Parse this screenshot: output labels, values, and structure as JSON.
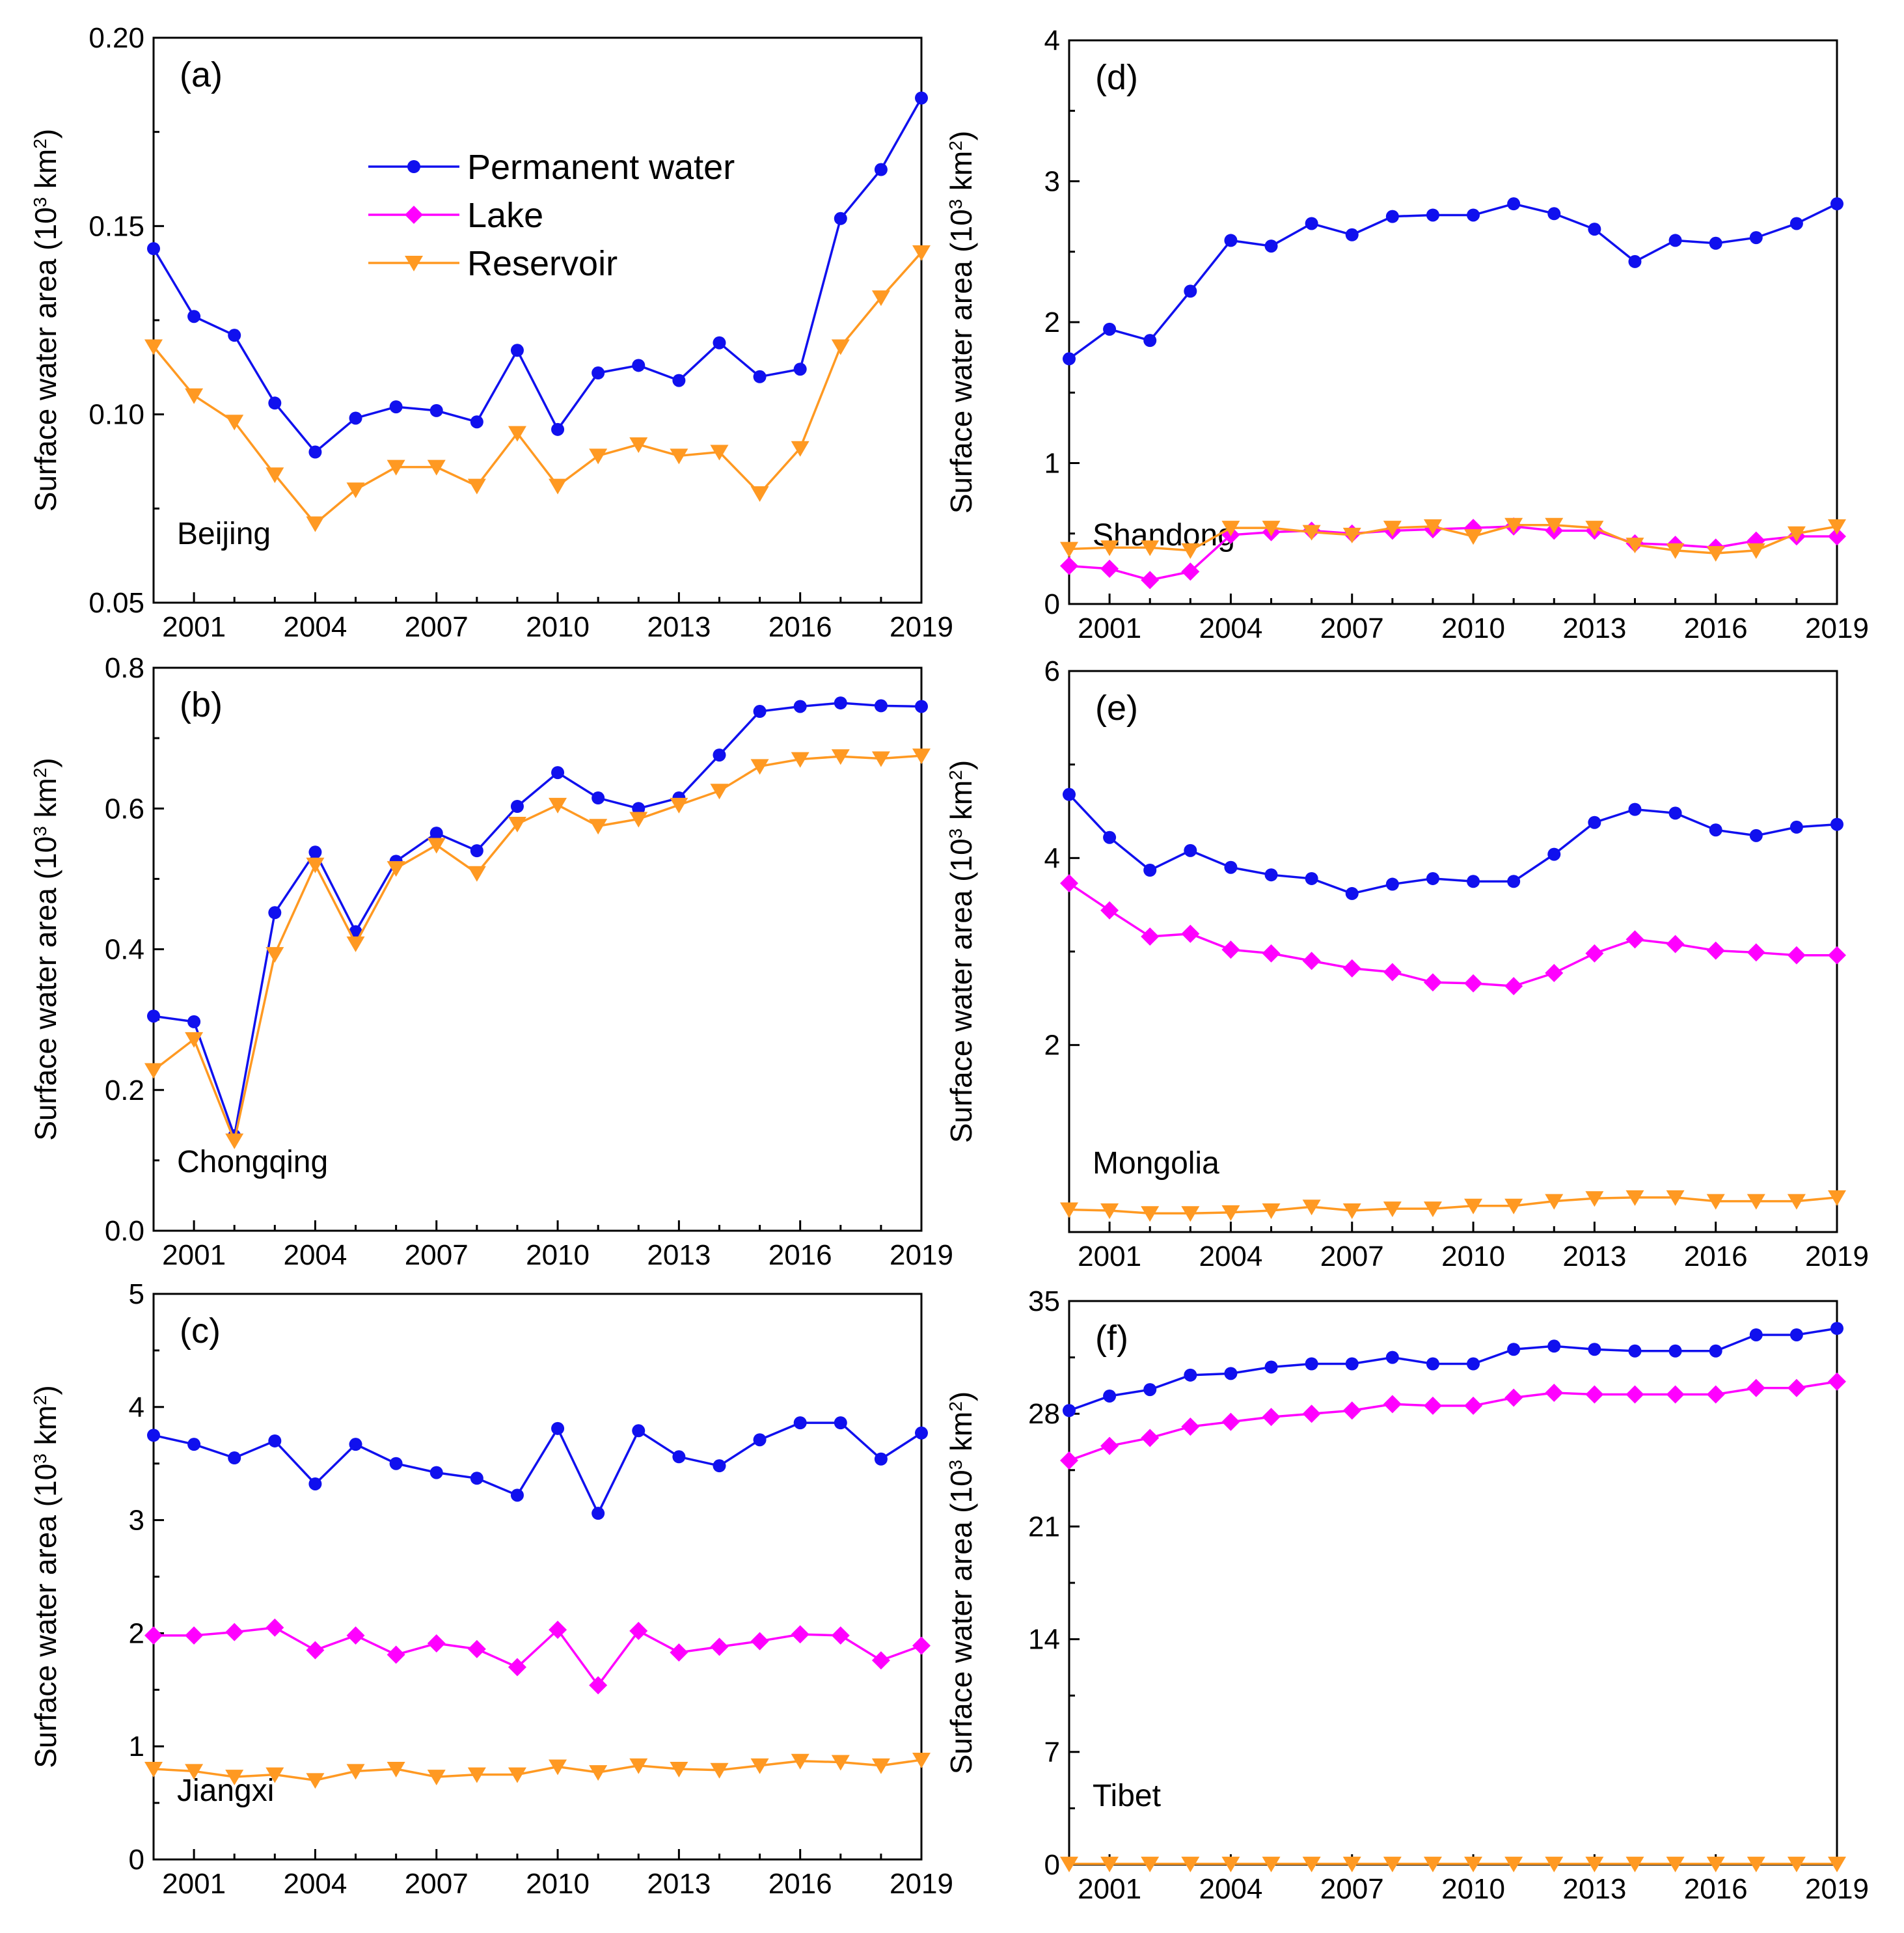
{
  "colors": {
    "permanent": "#1010ee",
    "lake": "#ff00ff",
    "reservoir": "#ff9922"
  },
  "legend": {
    "permanent": "Permanent water",
    "lake": "Lake",
    "reservoir": "Reservoir"
  },
  "chart_data": [
    {
      "type": "line",
      "panel_label": "(a)",
      "region": "Beijing",
      "ylabel_prefix": "Surface water area (10",
      "ylabel_exp": "3",
      "ylabel_unit": " km",
      "ylabel_exp2": "2",
      "ylabel_suffix": ")",
      "x": [
        2000,
        2001,
        2002,
        2003,
        2004,
        2005,
        2006,
        2007,
        2008,
        2009,
        2010,
        2011,
        2012,
        2013,
        2014,
        2015,
        2016,
        2017,
        2018,
        2019
      ],
      "xticks": [
        "2001",
        "2004",
        "2007",
        "2010",
        "2013",
        "2016",
        "2019"
      ],
      "ylim": [
        0.05,
        0.2
      ],
      "yticks": [
        {
          "v": 0.05,
          "label": "0.05"
        },
        {
          "v": 0.1,
          "label": "0.10"
        },
        {
          "v": 0.15,
          "label": "0.15"
        },
        {
          "v": 0.2,
          "label": "0.20"
        }
      ],
      "show_legend": true,
      "series": [
        {
          "name": "Permanent water",
          "key": "permanent",
          "marker": "circle",
          "values": [
            0.144,
            0.126,
            0.121,
            0.103,
            0.09,
            0.099,
            0.102,
            0.101,
            0.098,
            0.117,
            0.096,
            0.111,
            0.113,
            0.109,
            0.119,
            0.11,
            0.112,
            0.152,
            0.165,
            0.184
          ]
        },
        {
          "name": "Reservoir",
          "key": "reservoir",
          "marker": "triangle",
          "values": [
            0.118,
            0.105,
            0.098,
            0.084,
            0.071,
            0.08,
            0.086,
            0.086,
            0.081,
            0.095,
            0.081,
            0.089,
            0.092,
            0.089,
            0.09,
            0.079,
            0.091,
            0.118,
            0.131,
            0.143
          ]
        }
      ]
    },
    {
      "type": "line",
      "panel_label": "(b)",
      "region": "Chongqing",
      "ylabel_prefix": "Surface water area (10",
      "ylabel_exp": "3",
      "ylabel_unit": " km",
      "ylabel_exp2": "2",
      "ylabel_suffix": ")",
      "x": [
        2000,
        2001,
        2002,
        2003,
        2004,
        2005,
        2006,
        2007,
        2008,
        2009,
        2010,
        2011,
        2012,
        2013,
        2014,
        2015,
        2016,
        2017,
        2018,
        2019
      ],
      "xticks": [
        "2001",
        "2004",
        "2007",
        "2010",
        "2013",
        "2016",
        "2019"
      ],
      "ylim": [
        0.0,
        0.8
      ],
      "yticks": [
        {
          "v": 0.0,
          "label": "0.0"
        },
        {
          "v": 0.2,
          "label": "0.2"
        },
        {
          "v": 0.4,
          "label": "0.4"
        },
        {
          "v": 0.6,
          "label": "0.6"
        },
        {
          "v": 0.8,
          "label": "0.8"
        }
      ],
      "show_legend": false,
      "series": [
        {
          "name": "Permanent water",
          "key": "permanent",
          "marker": "circle",
          "values": [
            0.305,
            0.297,
            0.135,
            0.452,
            0.538,
            0.425,
            0.525,
            0.565,
            0.54,
            0.603,
            0.651,
            0.615,
            0.6,
            0.615,
            0.676,
            0.738,
            0.745,
            0.75,
            0.746,
            0.745
          ]
        },
        {
          "name": "Reservoir",
          "key": "reservoir",
          "marker": "triangle",
          "values": [
            0.228,
            0.272,
            0.128,
            0.393,
            0.52,
            0.408,
            0.515,
            0.548,
            0.508,
            0.578,
            0.605,
            0.575,
            0.585,
            0.605,
            0.625,
            0.66,
            0.67,
            0.674,
            0.671,
            0.675
          ]
        }
      ]
    },
    {
      "type": "line",
      "panel_label": "(c)",
      "region": "Jiangxi",
      "ylabel_prefix": "Surface water area (10",
      "ylabel_exp": "3",
      "ylabel_unit": " km",
      "ylabel_exp2": "2",
      "ylabel_suffix": ")",
      "x": [
        2000,
        2001,
        2002,
        2003,
        2004,
        2005,
        2006,
        2007,
        2008,
        2009,
        2010,
        2011,
        2012,
        2013,
        2014,
        2015,
        2016,
        2017,
        2018,
        2019
      ],
      "xticks": [
        "2001",
        "2004",
        "2007",
        "2010",
        "2013",
        "2016",
        "2019"
      ],
      "ylim": [
        0,
        5
      ],
      "yticks": [
        {
          "v": 0,
          "label": "0"
        },
        {
          "v": 1,
          "label": "1"
        },
        {
          "v": 2,
          "label": "2"
        },
        {
          "v": 3,
          "label": "3"
        },
        {
          "v": 4,
          "label": "4"
        },
        {
          "v": 5,
          "label": "5"
        }
      ],
      "show_legend": false,
      "series": [
        {
          "name": "Permanent water",
          "key": "permanent",
          "marker": "circle",
          "values": [
            3.75,
            3.67,
            3.55,
            3.7,
            3.32,
            3.67,
            3.5,
            3.42,
            3.37,
            3.22,
            3.81,
            3.06,
            3.79,
            3.56,
            3.48,
            3.71,
            3.86,
            3.86,
            3.54,
            3.77
          ]
        },
        {
          "name": "Lake",
          "key": "lake",
          "marker": "diamond",
          "values": [
            1.98,
            1.98,
            2.01,
            2.05,
            1.85,
            1.98,
            1.81,
            1.91,
            1.86,
            1.7,
            2.03,
            1.54,
            2.02,
            1.83,
            1.88,
            1.93,
            1.99,
            1.98,
            1.76,
            1.89
          ]
        },
        {
          "name": "Reservoir",
          "key": "reservoir",
          "marker": "triangle",
          "values": [
            0.8,
            0.78,
            0.73,
            0.75,
            0.7,
            0.78,
            0.8,
            0.73,
            0.75,
            0.75,
            0.82,
            0.77,
            0.83,
            0.8,
            0.79,
            0.83,
            0.87,
            0.86,
            0.83,
            0.88
          ]
        }
      ]
    },
    {
      "type": "line",
      "panel_label": "(d)",
      "region": "Shandong",
      "ylabel_prefix": "Surface water area (10",
      "ylabel_exp": "3",
      "ylabel_unit": " km",
      "ylabel_exp2": "2",
      "ylabel_suffix": ")",
      "x": [
        2000,
        2001,
        2002,
        2003,
        2004,
        2005,
        2006,
        2007,
        2008,
        2009,
        2010,
        2011,
        2012,
        2013,
        2014,
        2015,
        2016,
        2017,
        2018,
        2019
      ],
      "xticks": [
        "2001",
        "2004",
        "2007",
        "2010",
        "2013",
        "2016",
        "2019"
      ],
      "ylim": [
        0,
        4
      ],
      "yticks": [
        {
          "v": 0,
          "label": "0"
        },
        {
          "v": 1,
          "label": "1"
        },
        {
          "v": 2,
          "label": "2"
        },
        {
          "v": 3,
          "label": "3"
        },
        {
          "v": 4,
          "label": "4"
        }
      ],
      "show_legend": false,
      "series": [
        {
          "name": "Permanent water",
          "key": "permanent",
          "marker": "circle",
          "values": [
            1.74,
            1.95,
            1.87,
            2.22,
            2.58,
            2.54,
            2.7,
            2.62,
            2.75,
            2.76,
            2.76,
            2.84,
            2.77,
            2.66,
            2.43,
            2.58,
            2.56,
            2.6,
            2.7,
            2.84
          ]
        },
        {
          "name": "Lake",
          "key": "lake",
          "marker": "diamond",
          "values": [
            0.27,
            0.25,
            0.17,
            0.23,
            0.49,
            0.51,
            0.52,
            0.5,
            0.52,
            0.53,
            0.54,
            0.55,
            0.52,
            0.52,
            0.43,
            0.42,
            0.4,
            0.45,
            0.48,
            0.48
          ]
        },
        {
          "name": "Reservoir",
          "key": "reservoir",
          "marker": "triangle",
          "values": [
            0.39,
            0.4,
            0.4,
            0.38,
            0.54,
            0.54,
            0.51,
            0.49,
            0.54,
            0.55,
            0.48,
            0.56,
            0.56,
            0.54,
            0.42,
            0.38,
            0.36,
            0.38,
            0.5,
            0.55
          ]
        }
      ]
    },
    {
      "type": "line",
      "panel_label": "(e)",
      "region": "Mongolia",
      "ylabel_prefix": "Surface water area (10",
      "ylabel_exp": "3",
      "ylabel_unit": " km",
      "ylabel_exp2": "2",
      "ylabel_suffix": ")",
      "x": [
        2000,
        2001,
        2002,
        2003,
        2004,
        2005,
        2006,
        2007,
        2008,
        2009,
        2010,
        2011,
        2012,
        2013,
        2014,
        2015,
        2016,
        2017,
        2018,
        2019
      ],
      "xticks": [
        "2001",
        "2004",
        "2007",
        "2010",
        "2013",
        "2016",
        "2019"
      ],
      "ylim": [
        0,
        6
      ],
      "yticks": [
        {
          "v": 2,
          "label": "2"
        },
        {
          "v": 4,
          "label": "4"
        },
        {
          "v": 6,
          "label": "6"
        }
      ],
      "show_legend": false,
      "series": [
        {
          "name": "Permanent water",
          "key": "permanent",
          "marker": "circle",
          "values": [
            4.68,
            4.22,
            3.87,
            4.08,
            3.9,
            3.82,
            3.78,
            3.62,
            3.72,
            3.78,
            3.75,
            3.75,
            4.04,
            4.38,
            4.52,
            4.48,
            4.3,
            4.24,
            4.33,
            4.36
          ]
        },
        {
          "name": "Lake",
          "key": "lake",
          "marker": "diamond",
          "values": [
            3.73,
            3.44,
            3.16,
            3.19,
            3.02,
            2.98,
            2.9,
            2.82,
            2.78,
            2.67,
            2.66,
            2.63,
            2.77,
            2.98,
            3.13,
            3.08,
            3.01,
            2.99,
            2.96,
            2.96
          ]
        },
        {
          "name": "Reservoir",
          "key": "reservoir",
          "marker": "triangle",
          "values": [
            0.24,
            0.23,
            0.2,
            0.2,
            0.21,
            0.23,
            0.27,
            0.23,
            0.25,
            0.25,
            0.28,
            0.28,
            0.33,
            0.36,
            0.37,
            0.37,
            0.33,
            0.33,
            0.33,
            0.37
          ]
        }
      ]
    },
    {
      "type": "line",
      "panel_label": "(f)",
      "region": "Tibet",
      "ylabel_prefix": "Surface water area (10",
      "ylabel_exp": "3",
      "ylabel_unit": " km",
      "ylabel_exp2": "2",
      "ylabel_suffix": ")",
      "x": [
        2000,
        2001,
        2002,
        2003,
        2004,
        2005,
        2006,
        2007,
        2008,
        2009,
        2010,
        2011,
        2012,
        2013,
        2014,
        2015,
        2016,
        2017,
        2018,
        2019
      ],
      "xticks": [
        "2001",
        "2004",
        "2007",
        "2010",
        "2013",
        "2016",
        "2019"
      ],
      "ylim": [
        0,
        35
      ],
      "yticks": [
        {
          "v": 0,
          "label": "0"
        },
        {
          "v": 7,
          "label": "7"
        },
        {
          "v": 14,
          "label": "14"
        },
        {
          "v": 21,
          "label": "21"
        },
        {
          "v": 28,
          "label": "28"
        },
        {
          "v": 35,
          "label": "35"
        }
      ],
      "show_legend": false,
      "series": [
        {
          "name": "Permanent water",
          "key": "permanent",
          "marker": "circle",
          "values": [
            28.2,
            29.1,
            29.5,
            30.4,
            30.5,
            30.9,
            31.1,
            31.1,
            31.5,
            31.1,
            31.1,
            32.0,
            32.2,
            32.0,
            31.9,
            31.9,
            31.9,
            32.9,
            32.9,
            33.3
          ]
        },
        {
          "name": "Lake",
          "key": "lake",
          "marker": "diamond",
          "values": [
            25.1,
            26.0,
            26.5,
            27.2,
            27.5,
            27.8,
            28.0,
            28.2,
            28.6,
            28.5,
            28.5,
            29.0,
            29.3,
            29.2,
            29.2,
            29.2,
            29.2,
            29.6,
            29.6,
            30.0
          ]
        },
        {
          "name": "Reservoir",
          "key": "reservoir",
          "marker": "triangle",
          "values": [
            0.05,
            0.05,
            0.05,
            0.05,
            0.05,
            0.05,
            0.05,
            0.05,
            0.05,
            0.05,
            0.05,
            0.05,
            0.05,
            0.05,
            0.05,
            0.05,
            0.05,
            0.05,
            0.05,
            0.05
          ]
        }
      ]
    }
  ]
}
